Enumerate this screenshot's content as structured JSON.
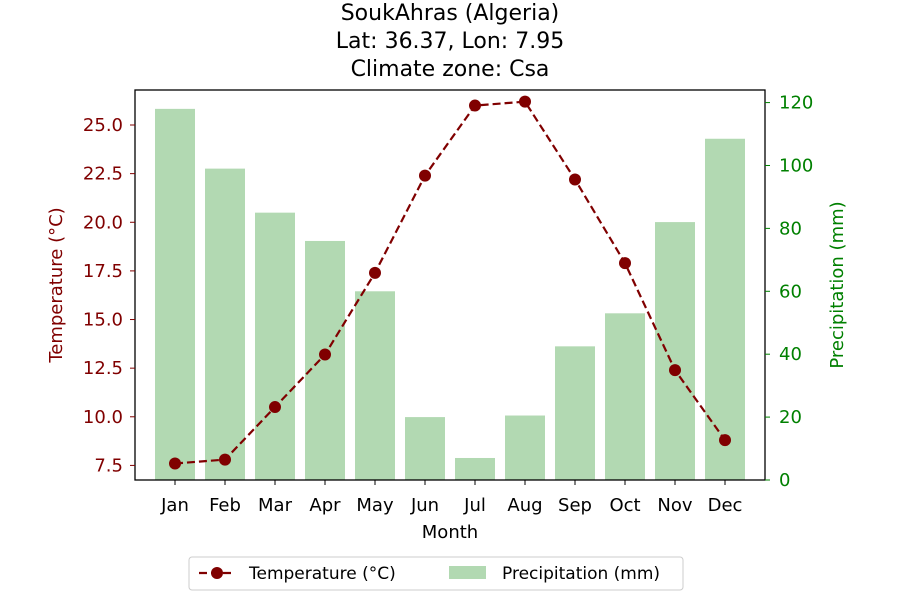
{
  "chart_data": {
    "type": "bar+line",
    "title": [
      "SoukAhras (Algeria)",
      "Lat: 36.37, Lon: 7.95",
      "Climate zone: Csa"
    ],
    "xlabel": "Month",
    "categories": [
      "Jan",
      "Feb",
      "Mar",
      "Apr",
      "May",
      "Jun",
      "Jul",
      "Aug",
      "Sep",
      "Oct",
      "Nov",
      "Dec"
    ],
    "y_left": {
      "label": "Temperature (°C)",
      "ylim": [
        6.75,
        26.8
      ],
      "ticks": [
        "7.5",
        "10.0",
        "12.5",
        "15.0",
        "17.5",
        "20.0",
        "22.5",
        "25.0"
      ],
      "color": "#800000"
    },
    "y_right": {
      "label": "Precipitation (mm)",
      "ylim": [
        0,
        124
      ],
      "ticks": [
        "0",
        "20",
        "40",
        "60",
        "80",
        "100",
        "120"
      ],
      "color": "#008000"
    },
    "series": [
      {
        "name": "Temperature (°C)",
        "type": "line",
        "axis": "left",
        "color": "#800000",
        "values": [
          7.6,
          7.8,
          10.5,
          13.2,
          17.4,
          22.4,
          26.0,
          26.2,
          22.2,
          17.9,
          12.4,
          8.8
        ]
      },
      {
        "name": "Precipitation (mm)",
        "type": "bar",
        "axis": "right",
        "color": "#b2d9b2",
        "values": [
          118,
          99,
          85,
          76,
          60,
          20,
          7,
          20.5,
          42.5,
          53,
          82,
          108.5
        ]
      }
    ],
    "legend": {
      "placement": "bottom-center",
      "entries": [
        "Temperature (°C)",
        "Precipitation (mm)"
      ]
    },
    "grid": false
  }
}
